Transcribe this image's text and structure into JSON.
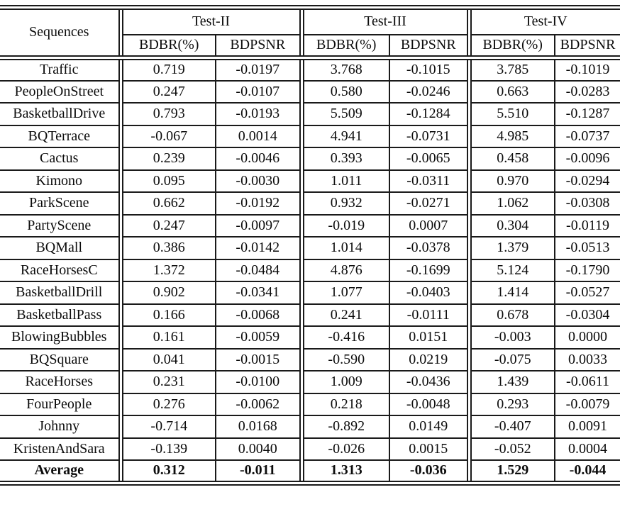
{
  "table": {
    "header": {
      "sequences_label": "Sequences",
      "groups": [
        {
          "label": "Test-II",
          "columns": [
            "BDBR(%)",
            "BDPSNR"
          ]
        },
        {
          "label": "Test-III",
          "columns": [
            "BDBR(%)",
            "BDPSNR"
          ]
        },
        {
          "label": "Test-IV",
          "columns": [
            "BDBR(%)",
            "BDPSNR"
          ]
        }
      ]
    },
    "rows": [
      {
        "sequence": "Traffic",
        "values": [
          "0.719",
          "-0.0197",
          "3.768",
          "-0.1015",
          "3.785",
          "-0.1019"
        ],
        "bold": false
      },
      {
        "sequence": "PeopleOnStreet",
        "values": [
          "0.247",
          "-0.0107",
          "0.580",
          "-0.0246",
          "0.663",
          "-0.0283"
        ],
        "bold": false
      },
      {
        "sequence": "BasketballDrive",
        "values": [
          "0.793",
          "-0.0193",
          "5.509",
          "-0.1284",
          "5.510",
          "-0.1287"
        ],
        "bold": false
      },
      {
        "sequence": "BQTerrace",
        "values": [
          "-0.067",
          "0.0014",
          "4.941",
          "-0.0731",
          "4.985",
          "-0.0737"
        ],
        "bold": false
      },
      {
        "sequence": "Cactus",
        "values": [
          "0.239",
          "-0.0046",
          "0.393",
          "-0.0065",
          "0.458",
          "-0.0096"
        ],
        "bold": false
      },
      {
        "sequence": "Kimono",
        "values": [
          "0.095",
          "-0.0030",
          "1.011",
          "-0.0311",
          "0.970",
          "-0.0294"
        ],
        "bold": false
      },
      {
        "sequence": "ParkScene",
        "values": [
          "0.662",
          "-0.0192",
          "0.932",
          "-0.0271",
          "1.062",
          "-0.0308"
        ],
        "bold": false
      },
      {
        "sequence": "PartyScene",
        "values": [
          "0.247",
          "-0.0097",
          "-0.019",
          "0.0007",
          "0.304",
          "-0.0119"
        ],
        "bold": false
      },
      {
        "sequence": "BQMall",
        "values": [
          "0.386",
          "-0.0142",
          "1.014",
          "-0.0378",
          "1.379",
          "-0.0513"
        ],
        "bold": false
      },
      {
        "sequence": "RaceHorsesC",
        "values": [
          "1.372",
          "-0.0484",
          "4.876",
          "-0.1699",
          "5.124",
          "-0.1790"
        ],
        "bold": false
      },
      {
        "sequence": "BasketballDrill",
        "values": [
          "0.902",
          "-0.0341",
          "1.077",
          "-0.0403",
          "1.414",
          "-0.0527"
        ],
        "bold": false
      },
      {
        "sequence": "BasketballPass",
        "values": [
          "0.166",
          "-0.0068",
          "0.241",
          "-0.0111",
          "0.678",
          "-0.0304"
        ],
        "bold": false
      },
      {
        "sequence": "BlowingBubbles",
        "values": [
          "0.161",
          "-0.0059",
          "-0.416",
          "0.0151",
          "-0.003",
          "0.0000"
        ],
        "bold": false
      },
      {
        "sequence": "BQSquare",
        "values": [
          "0.041",
          "-0.0015",
          "-0.590",
          "0.0219",
          "-0.075",
          "0.0033"
        ],
        "bold": false
      },
      {
        "sequence": "RaceHorses",
        "values": [
          "0.231",
          "-0.0100",
          "1.009",
          "-0.0436",
          "1.439",
          "-0.0611"
        ],
        "bold": false
      },
      {
        "sequence": "FourPeople",
        "values": [
          "0.276",
          "-0.0062",
          "0.218",
          "-0.0048",
          "0.293",
          "-0.0079"
        ],
        "bold": false
      },
      {
        "sequence": "Johnny",
        "values": [
          "-0.714",
          "0.0168",
          "-0.892",
          "0.0149",
          "-0.407",
          "0.0091"
        ],
        "bold": false
      },
      {
        "sequence": "KristenAndSara",
        "values": [
          "-0.139",
          "0.0040",
          "-0.026",
          "0.0015",
          "-0.052",
          "0.0004"
        ],
        "bold": false
      },
      {
        "sequence": "Average",
        "values": [
          "0.312",
          "-0.011",
          "1.313",
          "-0.036",
          "1.529",
          "-0.044"
        ],
        "bold": true
      }
    ]
  }
}
